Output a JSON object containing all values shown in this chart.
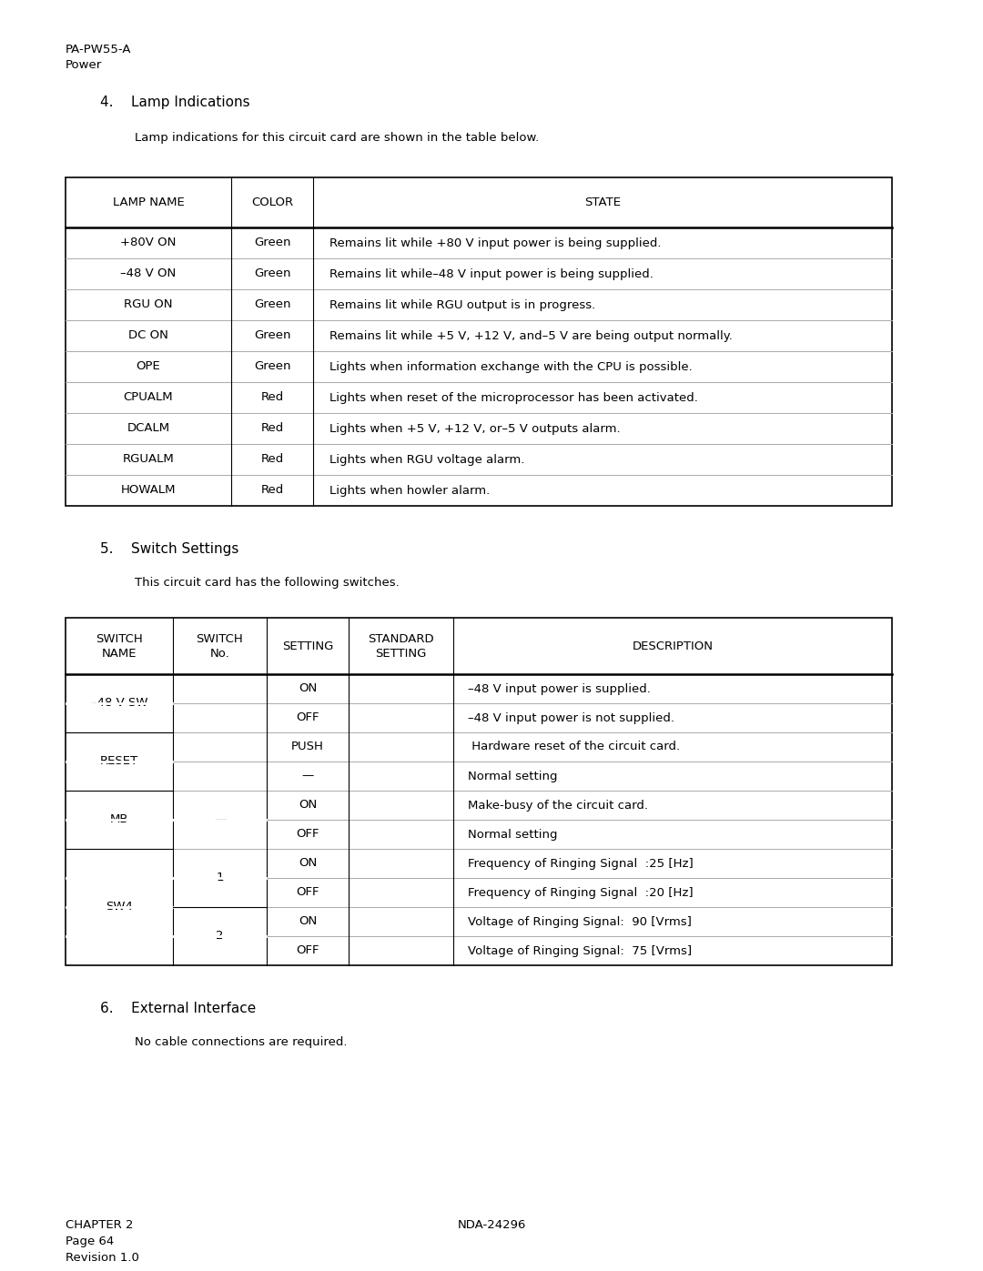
{
  "page_header_line1": "PA-PW55-A",
  "page_header_line2": "Power",
  "section4_title": "4.    Lamp Indications",
  "section4_intro": "Lamp indications for this circuit card are shown in the table below.",
  "lamp_table_headers": [
    "LAMP NAME",
    "COLOR",
    "STATE"
  ],
  "lamp_table_rows": [
    [
      "+80V ON",
      "Green",
      "Remains lit while +80 V input power is being supplied."
    ],
    [
      "–48 V ON",
      "Green",
      "Remains lit while–48 V input power is being supplied."
    ],
    [
      "RGU ON",
      "Green",
      "Remains lit while RGU output is in progress."
    ],
    [
      "DC ON",
      "Green",
      "Remains lit while +5 V, +12 V, and–5 V are being output normally."
    ],
    [
      "OPE",
      "Green",
      "Lights when information exchange with the CPU is possible."
    ],
    [
      "CPUALM",
      "Red",
      "Lights when reset of the microprocessor has been activated."
    ],
    [
      "DCALM",
      "Red",
      "Lights when +5 V, +12 V, or–5 V outputs alarm."
    ],
    [
      "RGUALM",
      "Red",
      "Lights when RGU voltage alarm."
    ],
    [
      "HOWALM",
      "Red",
      "Lights when howler alarm."
    ]
  ],
  "section5_title": "5.    Switch Settings",
  "section5_intro": "This circuit card has the following switches.",
  "switch_table_headers": [
    "SWITCH\nNAME",
    "SWITCH\nNo.",
    "SETTING",
    "STANDARD\nSETTING",
    "DESCRIPTION"
  ],
  "switch_table_rows_settings": [
    "ON",
    "OFF",
    "PUSH",
    "—",
    "ON",
    "OFF",
    "ON",
    "OFF",
    "ON",
    "OFF"
  ],
  "switch_table_rows_desc": [
    "–48 V input power is supplied.",
    "–48 V input power is not supplied.",
    " Hardware reset of the circuit card.",
    "Normal setting",
    "Make-busy of the circuit card.",
    "Normal setting",
    "Frequency of Ringing Signal  :25 [Hz]",
    "Frequency of Ringing Signal  :20 [Hz]",
    "Voltage of Ringing Signal:  90 [Vrms]",
    "Voltage of Ringing Signal:  75 [Vrms]"
  ],
  "section6_title": "6.    External Interface",
  "section6_intro": "No cable connections are required.",
  "footer_left_line1": "CHAPTER 2",
  "footer_left_line2": "Page 64",
  "footer_left_line3": "Revision 1.0",
  "footer_center": "NDA-24296",
  "bg_color": "#ffffff",
  "text_color": "#000000"
}
